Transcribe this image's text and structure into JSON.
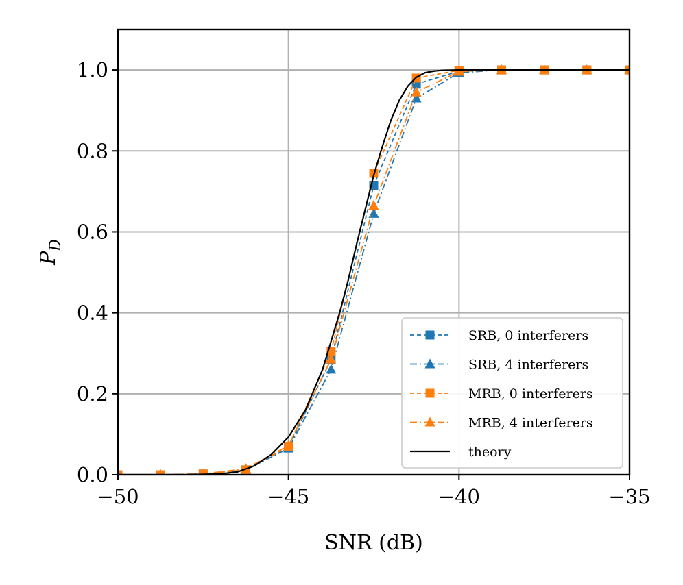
{
  "chart_data": {
    "type": "line",
    "title": "",
    "xlabel": "SNR (dB)",
    "ylabel_main": "P",
    "ylabel_sub": "D",
    "xlim": [
      -50,
      -35
    ],
    "ylim": [
      0.0,
      1.1
    ],
    "grid": true,
    "legend_position": "lower-right",
    "xticks": [
      {
        "value": -50,
        "label": "−50"
      },
      {
        "value": -45,
        "label": "−45"
      },
      {
        "value": -40,
        "label": "−40"
      },
      {
        "value": -35,
        "label": "−35"
      }
    ],
    "yticks": [
      {
        "value": 0.0,
        "label": "0.0"
      },
      {
        "value": 0.2,
        "label": "0.2"
      },
      {
        "value": 0.4,
        "label": "0.4"
      },
      {
        "value": 0.6,
        "label": "0.6"
      },
      {
        "value": 0.8,
        "label": "0.8"
      },
      {
        "value": 1.0,
        "label": "1.0"
      }
    ],
    "series": [
      {
        "name": "SRB, 0 interferers",
        "color": "#1f77b4",
        "dash": "dashed",
        "marker": "square",
        "x": [
          -50,
          -48.75,
          -47.5,
          -46.25,
          -45,
          -43.75,
          -42.5,
          -41.25,
          -40,
          -38.75,
          -37.5,
          -36.25,
          -35
        ],
        "y": [
          0.0,
          0.0,
          0.002,
          0.012,
          0.068,
          0.285,
          0.715,
          0.965,
          0.997,
          1.0,
          1.0,
          1.0,
          1.0
        ]
      },
      {
        "name": "SRB, 4 interferers",
        "color": "#1f77b4",
        "dash": "dashdot",
        "marker": "triangle",
        "x": [
          -50,
          -48.75,
          -47.5,
          -46.25,
          -45,
          -43.75,
          -42.5,
          -41.25,
          -40,
          -38.75,
          -37.5,
          -36.25,
          -35
        ],
        "y": [
          0.0,
          0.0,
          0.002,
          0.012,
          0.065,
          0.26,
          0.645,
          0.93,
          0.993,
          1.0,
          1.0,
          1.0,
          1.0
        ]
      },
      {
        "name": "MRB, 0 interferers",
        "color": "#ff7f0e",
        "dash": "dashed",
        "marker": "square",
        "x": [
          -50,
          -48.75,
          -47.5,
          -46.25,
          -45,
          -43.75,
          -42.5,
          -41.25,
          -40,
          -38.75,
          -37.5,
          -36.25,
          -35
        ],
        "y": [
          0.0,
          0.0,
          0.002,
          0.012,
          0.07,
          0.305,
          0.745,
          0.98,
          0.999,
          1.0,
          1.0,
          1.0,
          1.0
        ]
      },
      {
        "name": "MRB, 4 interferers",
        "color": "#ff7f0e",
        "dash": "dashdot",
        "marker": "triangle",
        "x": [
          -50,
          -48.75,
          -47.5,
          -46.25,
          -45,
          -43.75,
          -42.5,
          -41.25,
          -40,
          -38.75,
          -37.5,
          -36.25,
          -35
        ],
        "y": [
          0.0,
          0.0,
          0.002,
          0.015,
          0.072,
          0.285,
          0.665,
          0.945,
          0.996,
          1.0,
          1.0,
          1.0,
          1.0
        ]
      },
      {
        "name": "theory",
        "color": "#000000",
        "dash": "solid",
        "marker": "none",
        "x": [
          -50,
          -48,
          -47,
          -46.5,
          -46,
          -45.5,
          -45,
          -44.5,
          -44,
          -43.5,
          -43.25,
          -43,
          -42.75,
          -42.5,
          -42.25,
          -42,
          -41.75,
          -41.5,
          -41.25,
          -41,
          -40.75,
          -40.5,
          -40,
          -39.5,
          -38,
          -35
        ],
        "y": [
          0.0,
          0.0,
          0.002,
          0.007,
          0.022,
          0.05,
          0.093,
          0.16,
          0.26,
          0.4,
          0.48,
          0.57,
          0.655,
          0.74,
          0.81,
          0.875,
          0.925,
          0.96,
          0.982,
          0.993,
          0.997,
          0.999,
          1.0,
          1.0,
          1.0,
          1.0
        ]
      }
    ]
  }
}
